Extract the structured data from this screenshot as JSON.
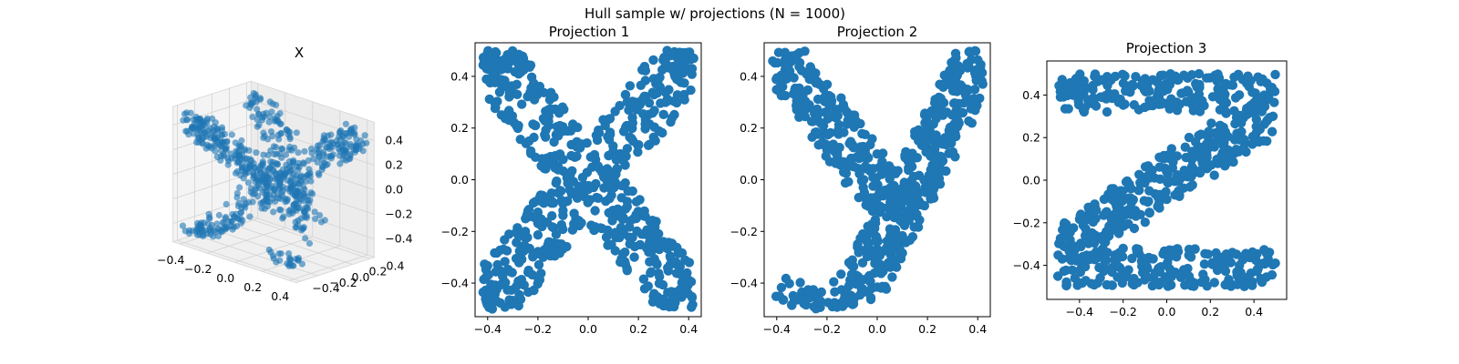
{
  "figure": {
    "suptitle": "Hull sample w/ projections (N = 1000)"
  },
  "colors": {
    "marker": "#1f77b4",
    "axes": "#000000",
    "background": "#ffffff",
    "pane": "#f2f2f2",
    "grid3d": "#d0d0d0"
  },
  "chart_data": [
    {
      "type": "scatter",
      "title": "X",
      "projection": "3d",
      "n_points": 1000,
      "xlim": [
        -0.45,
        0.45
      ],
      "ylim": [
        -0.45,
        0.45
      ],
      "zlim": [
        -0.55,
        0.55
      ],
      "x_ticks": [
        "−0.4",
        "−0.2",
        "0.0",
        "0.2",
        "0.4"
      ],
      "y_ticks": [
        "−0.4",
        "−0.2",
        "0.0",
        "0.2",
        "0.4"
      ],
      "z_ticks": [
        "−0.4",
        "−0.2",
        "0.0",
        "0.2",
        "0.4"
      ],
      "marker_alpha": 0.5,
      "grid": true
    },
    {
      "type": "scatter",
      "title": "Projection 1",
      "shape_letter": "X",
      "n_points": 1000,
      "xlim": [
        -0.45,
        0.45
      ],
      "ylim": [
        -0.53,
        0.53
      ],
      "xticks": [
        -0.4,
        -0.2,
        0.0,
        0.2,
        0.4
      ],
      "yticks": [
        -0.4,
        -0.2,
        0.0,
        0.2,
        0.4
      ],
      "xtick_labels": [
        "−0.4",
        "−0.2",
        "0.0",
        "0.2",
        "0.4"
      ],
      "ytick_labels": [
        "−0.4",
        "−0.2",
        "0.0",
        "0.2",
        "0.4"
      ],
      "grid": false
    },
    {
      "type": "scatter",
      "title": "Projection 2",
      "shape_letter": "Y",
      "n_points": 1000,
      "xlim": [
        -0.45,
        0.45
      ],
      "ylim": [
        -0.53,
        0.53
      ],
      "xticks": [
        -0.4,
        -0.2,
        0.0,
        0.2,
        0.4
      ],
      "yticks": [
        -0.4,
        -0.2,
        0.0,
        0.2,
        0.4
      ],
      "xtick_labels": [
        "−0.4",
        "−0.2",
        "0.0",
        "0.2",
        "0.4"
      ],
      "ytick_labels": [
        "−0.4",
        "−0.2",
        "0.0",
        "0.2",
        "0.4"
      ],
      "grid": false
    },
    {
      "type": "scatter",
      "title": "Projection 3",
      "shape_letter": "Z",
      "n_points": 1000,
      "xlim": [
        -0.55,
        0.55
      ],
      "ylim": [
        -0.56,
        0.56
      ],
      "xticks": [
        -0.4,
        -0.2,
        0.0,
        0.2,
        0.4
      ],
      "yticks": [
        -0.4,
        -0.2,
        0.0,
        0.2,
        0.4
      ],
      "xtick_labels": [
        "−0.4",
        "−0.2",
        "0.0",
        "0.2",
        "0.4"
      ],
      "ytick_labels": [
        "−0.4",
        "−0.2",
        "0.0",
        "0.2",
        "0.4"
      ],
      "grid": false
    }
  ]
}
